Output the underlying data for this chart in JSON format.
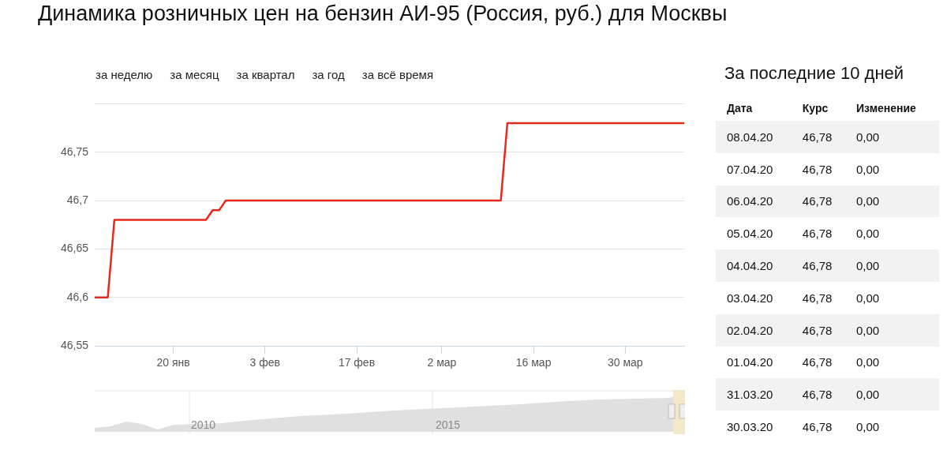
{
  "chart_data": [
    {
      "type": "line",
      "title": "Динамика розничных цен на бензин АИ-95 (Россия, руб.) для Москвы",
      "x": [
        "--01-08",
        "--01-10",
        "--01-11",
        "--01-25",
        "--01-26",
        "--01-27",
        "--01-28",
        "--03-11",
        "--03-12",
        "--04-08"
      ],
      "series": [
        {
          "color": "#e8291c",
          "values": [
            46.6,
            46.6,
            46.68,
            46.68,
            46.69,
            46.69,
            46.7,
            46.7,
            46.78,
            46.78
          ]
        }
      ],
      "xlim": [
        "--01-08",
        "--04-08"
      ],
      "xticks": [
        {
          "value": "--01-20",
          "label": "20 янв"
        },
        {
          "value": "--02-03",
          "label": "3 фев"
        },
        {
          "value": "--02-17",
          "label": "17 фев"
        },
        {
          "value": "--03-02",
          "label": "2 мар"
        },
        {
          "value": "--03-16",
          "label": "16 мар"
        },
        {
          "value": "--03-30",
          "label": "30 мар"
        }
      ],
      "ylim": [
        46.55,
        46.8
      ],
      "yticks": [
        {
          "value": 46.55,
          "label": "46,55"
        },
        {
          "value": 46.6,
          "label": "46,6"
        },
        {
          "value": 46.65,
          "label": "46,65"
        },
        {
          "value": 46.7,
          "label": "46,7"
        },
        {
          "value": 46.75,
          "label": "46,75"
        },
        {
          "value": 46.8,
          "label": null
        }
      ],
      "grid": "y",
      "legend": false,
      "marker": "none",
      "line_style": "solid",
      "annotations": [
        "за неделю",
        "за месяц",
        "за квартал",
        "за год",
        "за всё время",
        "2010",
        "2015"
      ]
    },
    {
      "type": "other",
      "title": "За последние 10 дней",
      "xlabel": "Дата",
      "categories": [
        "08.04.20",
        "07.04.20",
        "06.04.20",
        "05.04.20",
        "04.04.20",
        "03.04.20",
        "02.04.20",
        "01.04.20",
        "31.03.20",
        "30.03.20"
      ],
      "series": [
        {
          "name": "Курс",
          "values": [
            46.78,
            46.78,
            46.78,
            46.78,
            46.78,
            46.78,
            46.78,
            46.78,
            46.78,
            46.78
          ],
          "value_labels": [
            "46,78",
            "46,78",
            "46,78",
            "46,78",
            "46,78",
            "46,78",
            "46,78",
            "46,78",
            "46,78",
            "46,78"
          ]
        },
        {
          "name": "Изменение",
          "values": [
            0,
            0,
            0,
            0,
            0,
            0,
            0,
            0,
            0,
            0
          ],
          "value_labels": [
            "0,00",
            "0,00",
            "0,00",
            "0,00",
            "0,00",
            "0,00",
            "0,00",
            "0,00",
            "0,00",
            "0,00"
          ]
        }
      ]
    }
  ]
}
